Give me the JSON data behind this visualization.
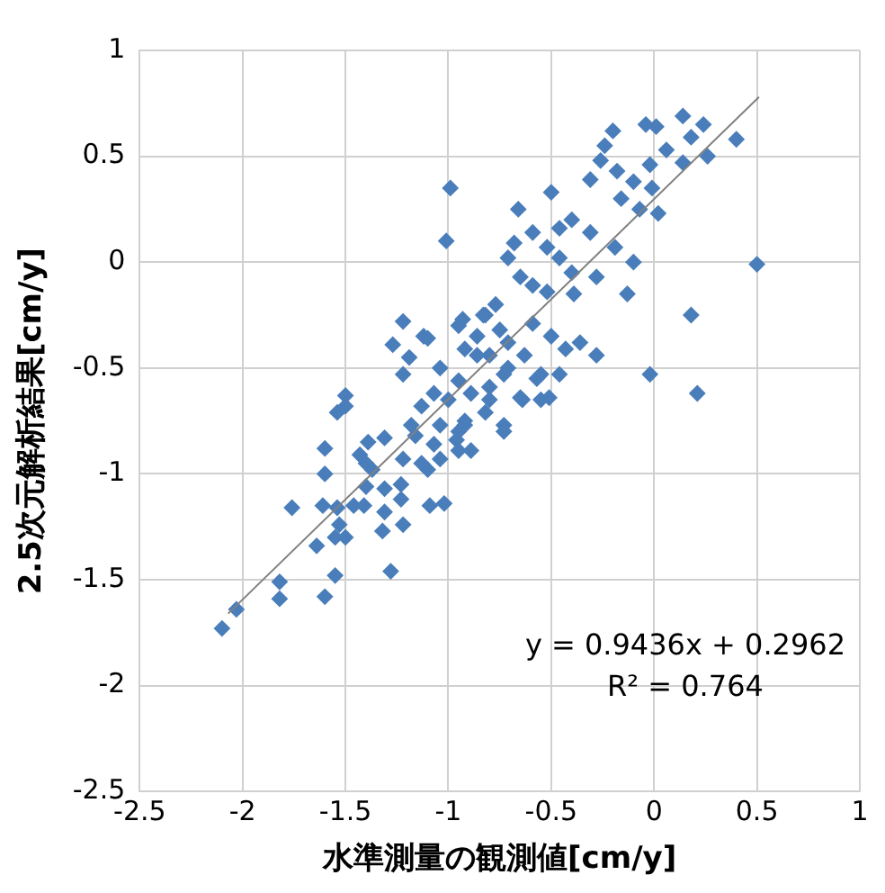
{
  "chart_data": {
    "type": "scatter",
    "xlabel": "水準測量の観測値[cm/y]",
    "ylabel": "2.5次元解析結果[cm/y]",
    "xlim": [
      -2.5,
      1
    ],
    "xticks": [
      -2.5,
      -2,
      -1.5,
      -1,
      -0.5,
      0,
      0.5,
      1
    ],
    "ylim": [
      -2.5,
      1
    ],
    "yticks": [
      -2.5,
      -2,
      -1.5,
      -1,
      -0.5,
      0,
      0.5,
      1
    ],
    "grid": true,
    "annotations": [
      "y = 0.9436x + 0.2962",
      "R² = 0.764"
    ],
    "series": [
      {
        "type": "scatter",
        "color": "#4a7ebb",
        "marker": "diamond",
        "x": [
          -0.99,
          -1.01,
          -1.22,
          -1.27,
          -1.19,
          -1.1,
          -1.22,
          -1.5,
          -1.54,
          -0.95,
          -0.93,
          0.14,
          0.24,
          0.4,
          -0.04,
          0.01,
          0.18,
          0.26,
          0.14,
          -0.2,
          -0.24,
          -0.26,
          -0.02,
          0.06,
          -0.31,
          -0.18,
          -0.1,
          -0.01,
          -0.5,
          -0.66,
          -0.16,
          -0.07,
          0.02,
          -0.59,
          -0.46,
          -0.4,
          -0.31,
          -0.19,
          -0.1,
          -0.68,
          -0.71,
          -0.52,
          -0.46,
          0.5,
          -0.28,
          -0.4,
          -0.59,
          -0.52,
          -0.65,
          -0.13,
          -0.39,
          0.18,
          -0.77,
          -0.83,
          -0.59,
          -0.5,
          -0.36,
          -0.28,
          -0.43,
          -0.71,
          -0.86,
          -0.02,
          0.21,
          -0.46,
          -0.57,
          -0.65,
          -0.51,
          -0.73,
          -0.8,
          -2.1,
          -2.03,
          -1.82,
          -1.82,
          -1.6,
          -1.55,
          -1.28,
          -1.76,
          -1.64,
          -1.6,
          -1.6,
          -1.61,
          -1.54,
          -1.53,
          -1.55,
          -1.5,
          -1.46,
          -1.41,
          -1.43,
          -1.39,
          -1.31,
          -1.37,
          -1.4,
          -1.31,
          -1.23,
          -1.23,
          -1.31,
          -1.32,
          -1.22,
          -1.22,
          -1.1,
          -1.04,
          -1.09,
          -1.02,
          -1.18,
          -0.92,
          -0.89,
          -0.96,
          -1.12,
          -0.82,
          -0.86,
          -0.75,
          -0.92,
          -0.8,
          -0.63,
          -0.71,
          -1.04,
          -0.95,
          -1.07,
          -1.13,
          -1.0,
          -0.89,
          -0.8,
          -0.64,
          -0.55,
          -0.55,
          -0.92,
          -1.04,
          -0.73,
          -0.82,
          -1.16,
          -1.07,
          -0.95,
          -1.4,
          -1.13,
          -1.5,
          -0.95,
          -0.73
        ],
        "values": [
          0.35,
          0.1,
          -0.28,
          -0.39,
          -0.45,
          -0.36,
          -0.53,
          -0.63,
          -0.71,
          -0.3,
          -0.27,
          0.69,
          0.65,
          0.58,
          0.65,
          0.64,
          0.59,
          0.5,
          0.47,
          0.62,
          0.55,
          0.48,
          0.46,
          0.53,
          0.39,
          0.43,
          0.38,
          0.35,
          0.33,
          0.25,
          0.3,
          0.25,
          0.23,
          0.14,
          0.16,
          0.2,
          0.14,
          0.07,
          0.0,
          0.09,
          0.02,
          0.07,
          0.02,
          -0.01,
          -0.07,
          -0.05,
          -0.11,
          -0.14,
          -0.07,
          -0.15,
          -0.15,
          -0.25,
          -0.2,
          -0.25,
          -0.29,
          -0.35,
          -0.38,
          -0.44,
          -0.41,
          -0.38,
          -0.44,
          -0.53,
          -0.62,
          -0.53,
          -0.55,
          -0.64,
          -0.64,
          -0.53,
          -0.65,
          -1.73,
          -1.64,
          -1.51,
          -1.59,
          -1.58,
          -1.48,
          -1.46,
          -1.16,
          -1.34,
          -0.88,
          -1.0,
          -1.15,
          -1.16,
          -1.24,
          -1.3,
          -1.3,
          -1.15,
          -1.15,
          -0.91,
          -0.85,
          -0.83,
          -0.98,
          -1.06,
          -1.07,
          -1.05,
          -1.12,
          -1.18,
          -1.27,
          -1.24,
          -0.93,
          -0.98,
          -0.93,
          -1.15,
          -1.14,
          -0.77,
          -0.77,
          -0.89,
          -0.84,
          -0.35,
          -0.25,
          -0.35,
          -0.32,
          -0.41,
          -0.44,
          -0.44,
          -0.5,
          -0.5,
          -0.56,
          -0.62,
          -0.68,
          -0.65,
          -0.62,
          -0.59,
          -0.65,
          -0.53,
          -0.65,
          -0.75,
          -0.77,
          -0.77,
          -0.71,
          -0.82,
          -0.86,
          -0.89,
          -0.95,
          -0.95,
          -0.68,
          -0.8,
          -0.8
        ]
      },
      {
        "type": "line",
        "color": "#808080",
        "marker": "none",
        "x": [
          -2.07,
          0.51
        ],
        "values": [
          -1.66,
          0.78
        ]
      }
    ]
  }
}
